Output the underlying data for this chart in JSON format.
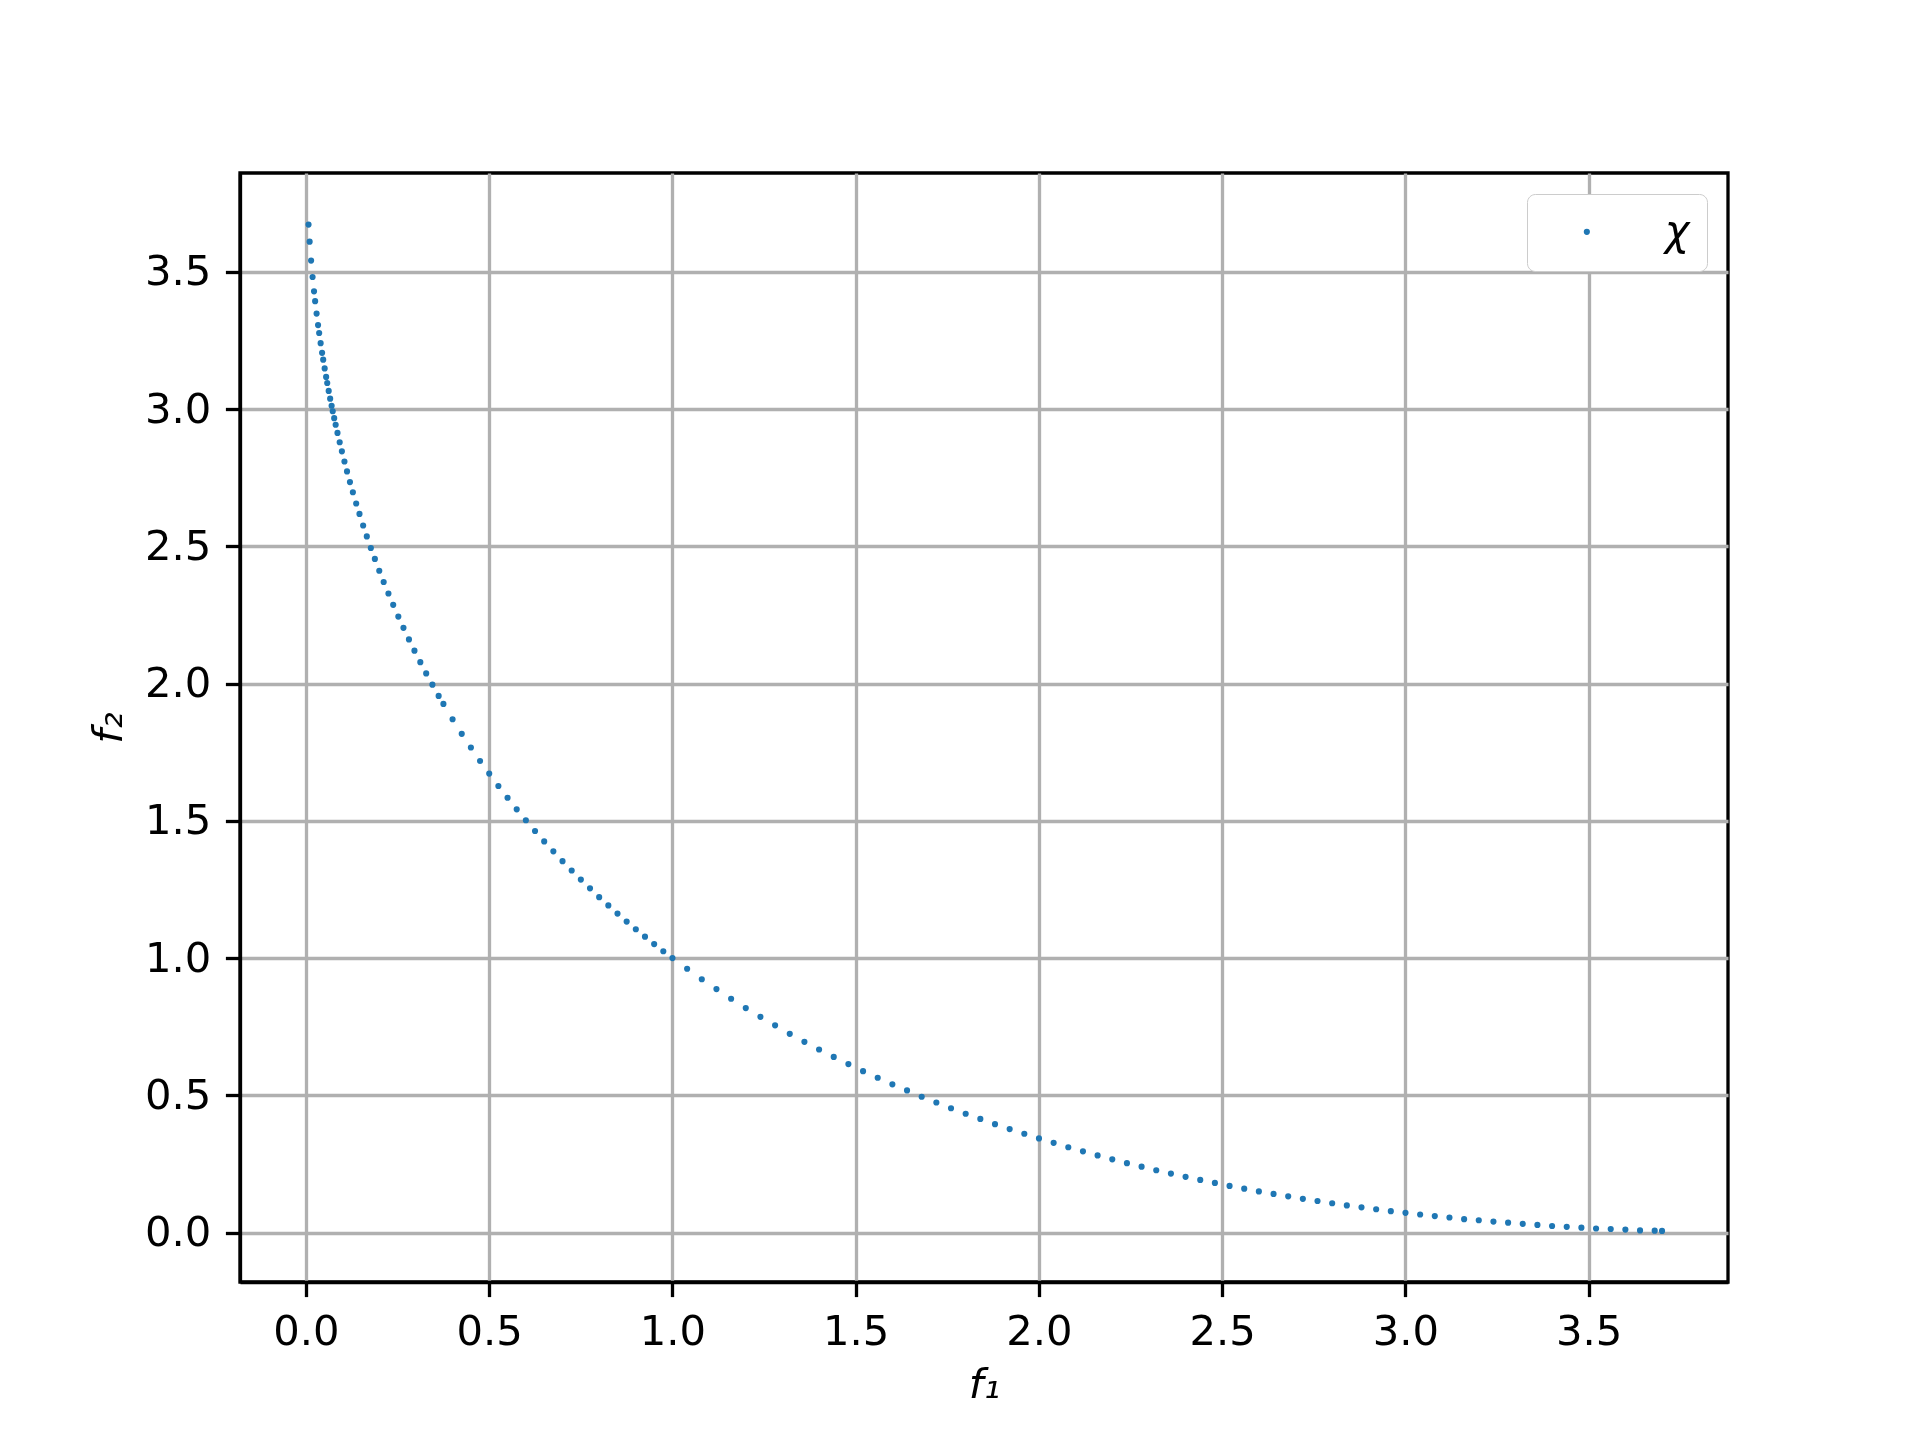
{
  "chart_data": {
    "type": "scatter",
    "xlabel": "f₁",
    "ylabel": "f₂",
    "x": [
      0.007,
      0.01,
      0.014,
      0.018,
      0.022,
      0.025,
      0.029,
      0.033,
      0.036,
      0.04,
      0.044,
      0.047,
      0.051,
      0.055,
      0.058,
      0.062,
      0.066,
      0.07,
      0.073,
      0.077,
      0.081,
      0.086,
      0.092,
      0.098,
      0.105,
      0.112,
      0.12,
      0.128,
      0.137,
      0.146,
      0.156,
      0.166,
      0.177,
      0.188,
      0.2,
      0.212,
      0.225,
      0.238,
      0.252,
      0.266,
      0.281,
      0.296,
      0.312,
      0.328,
      0.345,
      0.362,
      0.375,
      0.4,
      0.425,
      0.45,
      0.475,
      0.5,
      0.525,
      0.55,
      0.575,
      0.6,
      0.625,
      0.65,
      0.675,
      0.7,
      0.725,
      0.75,
      0.775,
      0.8,
      0.825,
      0.85,
      0.875,
      0.9,
      0.925,
      0.95,
      0.975,
      1.0,
      1.04,
      1.08,
      1.12,
      1.16,
      1.2,
      1.24,
      1.28,
      1.32,
      1.36,
      1.4,
      1.44,
      1.48,
      1.52,
      1.56,
      1.6,
      1.64,
      1.68,
      1.72,
      1.76,
      1.8,
      1.84,
      1.88,
      1.92,
      1.96,
      2.0,
      2.04,
      2.08,
      2.12,
      2.16,
      2.2,
      2.24,
      2.28,
      2.32,
      2.36,
      2.4,
      2.44,
      2.48,
      2.52,
      2.56,
      2.6,
      2.64,
      2.68,
      2.72,
      2.76,
      2.8,
      2.84,
      2.88,
      2.92,
      2.96,
      3.0,
      3.04,
      3.08,
      3.12,
      3.16,
      3.2,
      3.24,
      3.28,
      3.32,
      3.36,
      3.4,
      3.44,
      3.48,
      3.52,
      3.56,
      3.6,
      3.64,
      3.68,
      3.7
    ],
    "series": [
      {
        "name": "χ",
        "color": "#1f77b4",
        "values": [
          3.672,
          3.61,
          3.541,
          3.481,
          3.429,
          3.393,
          3.348,
          3.306,
          3.277,
          3.24,
          3.205,
          3.18,
          3.148,
          3.117,
          3.095,
          3.066,
          3.038,
          3.012,
          2.992,
          2.967,
          2.943,
          2.913,
          2.879,
          2.846,
          2.809,
          2.773,
          2.734,
          2.697,
          2.656,
          2.618,
          2.576,
          2.536,
          2.494,
          2.454,
          2.411,
          2.37,
          2.328,
          2.287,
          2.244,
          2.203,
          2.161,
          2.12,
          2.078,
          2.037,
          1.996,
          1.955,
          1.926,
          1.87,
          1.817,
          1.767,
          1.718,
          1.672,
          1.627,
          1.584,
          1.542,
          1.502,
          1.463,
          1.425,
          1.389,
          1.353,
          1.319,
          1.286,
          1.254,
          1.222,
          1.192,
          1.162,
          1.133,
          1.105,
          1.078,
          1.051,
          1.025,
          1.0,
          0.961,
          0.923,
          0.887,
          0.852,
          0.818,
          0.786,
          0.755,
          0.724,
          0.695,
          0.667,
          0.64,
          0.614,
          0.588,
          0.564,
          0.54,
          0.518,
          0.495,
          0.474,
          0.453,
          0.433,
          0.414,
          0.395,
          0.377,
          0.36,
          0.343,
          0.327,
          0.311,
          0.296,
          0.281,
          0.267,
          0.253,
          0.24,
          0.227,
          0.215,
          0.203,
          0.192,
          0.181,
          0.17,
          0.16,
          0.15,
          0.141,
          0.132,
          0.123,
          0.115,
          0.107,
          0.099,
          0.092,
          0.085,
          0.078,
          0.072,
          0.066,
          0.06,
          0.055,
          0.049,
          0.045,
          0.04,
          0.036,
          0.032,
          0.028,
          0.024,
          0.021,
          0.018,
          0.015,
          0.013,
          0.011,
          0.008,
          0.007,
          0.006
        ]
      }
    ],
    "xlim": [
      -0.18,
      3.88
    ],
    "ylim": [
      -0.18,
      3.86
    ],
    "xticks": [
      {
        "value": 0,
        "label": "0.0"
      },
      {
        "value": 0.5,
        "label": "0.5"
      },
      {
        "value": 1,
        "label": "1.0"
      },
      {
        "value": 1.5,
        "label": "1.5"
      },
      {
        "value": 2,
        "label": "2.0"
      },
      {
        "value": 2.5,
        "label": "2.5"
      },
      {
        "value": 3,
        "label": "3.0"
      },
      {
        "value": 3.5,
        "label": "3.5"
      }
    ],
    "yticks": [
      {
        "value": 0,
        "label": "0.0"
      },
      {
        "value": 0.5,
        "label": "0.5"
      },
      {
        "value": 1,
        "label": "1.0"
      },
      {
        "value": 1.5,
        "label": "1.5"
      },
      {
        "value": 2,
        "label": "2.0"
      },
      {
        "value": 2.5,
        "label": "2.5"
      },
      {
        "value": 3,
        "label": "3.0"
      },
      {
        "value": 3.5,
        "label": "3.5"
      }
    ],
    "grid": true,
    "legend": "top right",
    "marker": "circle"
  }
}
